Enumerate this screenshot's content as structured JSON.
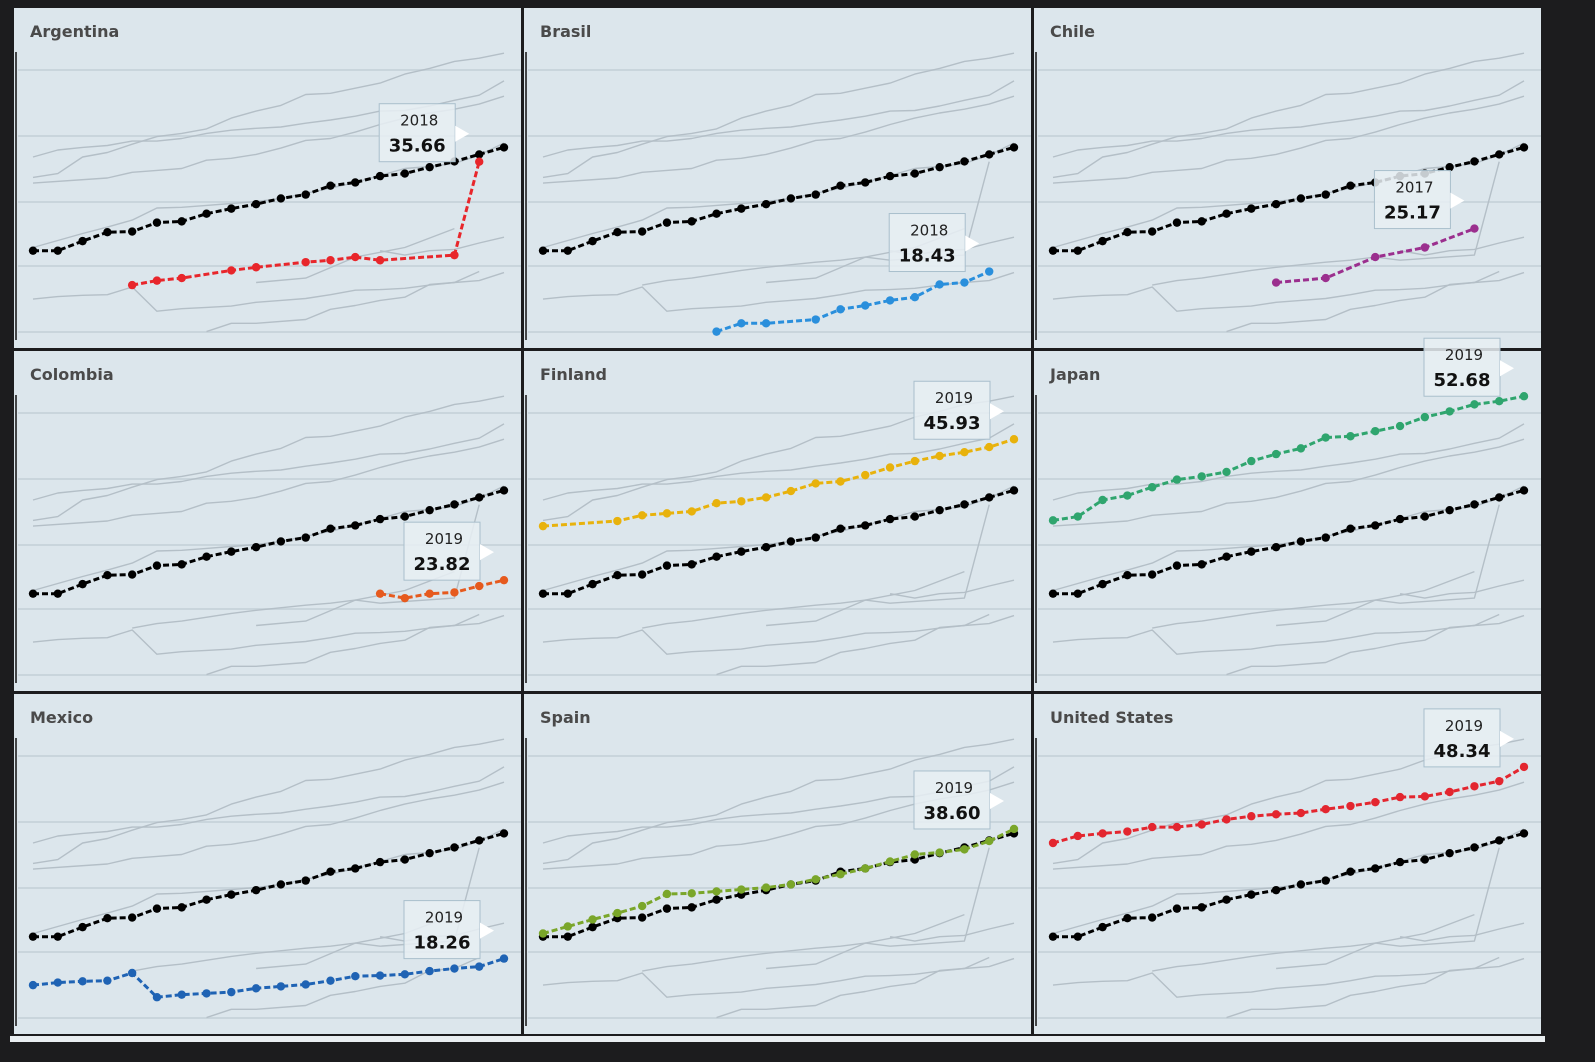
{
  "chart_data": {
    "type": "line",
    "xlim": [
      2000,
      2019
    ],
    "ylim": [
      8,
      53.5
    ],
    "reference": {
      "color": "#000000",
      "x": [
        2000,
        2001,
        2002,
        2003,
        2004,
        2005,
        2006,
        2007,
        2008,
        2009,
        2010,
        2011,
        2012,
        2013,
        2014,
        2015,
        2016,
        2017,
        2018,
        2019
      ],
      "values": [
        21.7,
        21.7,
        23.2,
        24.6,
        24.7,
        26.1,
        26.3,
        27.5,
        28.3,
        29.0,
        29.9,
        30.5,
        31.9,
        32.4,
        33.4,
        33.8,
        34.8,
        35.7,
        36.8,
        37.9
      ]
    },
    "series": [
      {
        "name": "Argentina",
        "color": "#e8262b",
        "x": [
          2004,
          2005,
          2006,
          2008,
          2009,
          2011,
          2012,
          2013,
          2014,
          2017,
          2018
        ],
        "values": [
          16.3,
          17.0,
          17.4,
          18.6,
          19.1,
          19.9,
          20.2,
          20.7,
          20.2,
          21.0,
          35.66
        ],
        "annotation": {
          "x": 2018,
          "label": "35.66"
        }
      },
      {
        "name": "Brasil",
        "color": "#2a8fdc",
        "x": [
          2007,
          2008,
          2009,
          2011,
          2012,
          2013,
          2014,
          2015,
          2016,
          2017,
          2018
        ],
        "values": [
          9.0,
          10.3,
          10.3,
          10.9,
          12.5,
          13.1,
          13.9,
          14.4,
          16.4,
          16.7,
          18.43
        ],
        "annotation": {
          "x": 2018,
          "label": "18.43"
        }
      },
      {
        "name": "Chile",
        "color": "#9b2f8e",
        "x": [
          2009,
          2011,
          2013,
          2015,
          2017
        ],
        "values": [
          16.7,
          17.4,
          20.7,
          22.2,
          25.17
        ],
        "annotation": {
          "x": 2017,
          "label": "25.17"
        }
      },
      {
        "name": "Colombia",
        "color": "#e65a1e",
        "x": [
          2014,
          2015,
          2016,
          2017,
          2018,
          2019
        ],
        "values": [
          21.7,
          21.0,
          21.7,
          21.9,
          22.9,
          23.82
        ],
        "annotation": {
          "x": 2019,
          "label": "23.82"
        }
      },
      {
        "name": "Finland",
        "color": "#e8b20c",
        "x": [
          2000,
          2003,
          2004,
          2005,
          2006,
          2007,
          2008,
          2009,
          2010,
          2011,
          2012,
          2013,
          2014,
          2015,
          2016,
          2017,
          2018,
          2019
        ],
        "values": [
          32.3,
          33.1,
          34.0,
          34.3,
          34.6,
          35.9,
          36.2,
          36.8,
          37.8,
          39.0,
          39.3,
          40.3,
          41.5,
          42.5,
          43.3,
          43.9,
          44.7,
          45.93
        ],
        "annotation": {
          "x": 2019,
          "label": "45.93"
        }
      },
      {
        "name": "Japan",
        "color": "#2fa56e",
        "x": [
          2000,
          2001,
          2002,
          2003,
          2004,
          2005,
          2006,
          2007,
          2008,
          2009,
          2010,
          2011,
          2012,
          2013,
          2014,
          2015,
          2016,
          2017,
          2018,
          2019
        ],
        "values": [
          33.2,
          33.8,
          36.4,
          37.1,
          38.4,
          39.6,
          40.1,
          40.8,
          42.5,
          43.6,
          44.5,
          46.2,
          46.4,
          47.2,
          48.0,
          49.4,
          50.3,
          51.4,
          51.9,
          52.68
        ],
        "annotation": {
          "x": 2019,
          "label": "52.68"
        }
      },
      {
        "name": "Mexico",
        "color": "#1f63b4",
        "x": [
          2000,
          2001,
          2002,
          2003,
          2004,
          2005,
          2006,
          2007,
          2008,
          2009,
          2010,
          2011,
          2012,
          2013,
          2014,
          2015,
          2016,
          2017,
          2018,
          2019
        ],
        "values": [
          14.1,
          14.5,
          14.7,
          14.8,
          16.0,
          12.2,
          12.6,
          12.8,
          13.0,
          13.6,
          13.9,
          14.2,
          14.8,
          15.5,
          15.6,
          15.8,
          16.3,
          16.7,
          17.0,
          18.26
        ],
        "annotation": {
          "x": 2019,
          "label": "18.26"
        }
      },
      {
        "name": "Spain",
        "color": "#7aa62a",
        "x": [
          2000,
          2001,
          2002,
          2003,
          2004,
          2005,
          2006,
          2007,
          2008,
          2009,
          2010,
          2011,
          2012,
          2013,
          2014,
          2015,
          2016,
          2017,
          2018,
          2019
        ],
        "values": [
          22.2,
          23.3,
          24.4,
          25.4,
          26.5,
          28.4,
          28.5,
          28.8,
          29.1,
          29.4,
          29.9,
          30.7,
          31.5,
          32.4,
          33.5,
          34.6,
          34.9,
          35.4,
          36.7,
          38.6
        ],
        "annotation": {
          "x": 2019,
          "label": "38.60"
        }
      },
      {
        "name": "United States",
        "color": "#e3262f",
        "x": [
          2000,
          2001,
          2002,
          2003,
          2004,
          2005,
          2006,
          2007,
          2008,
          2009,
          2010,
          2011,
          2012,
          2013,
          2014,
          2015,
          2016,
          2017,
          2018,
          2019
        ],
        "values": [
          36.4,
          37.5,
          37.9,
          38.2,
          38.9,
          38.9,
          39.3,
          40.1,
          40.6,
          40.9,
          41.1,
          41.7,
          42.2,
          42.8,
          43.6,
          43.7,
          44.4,
          45.3,
          46.1,
          48.34
        ],
        "annotation": {
          "x": 2019,
          "label": "48.34"
        }
      }
    ]
  }
}
